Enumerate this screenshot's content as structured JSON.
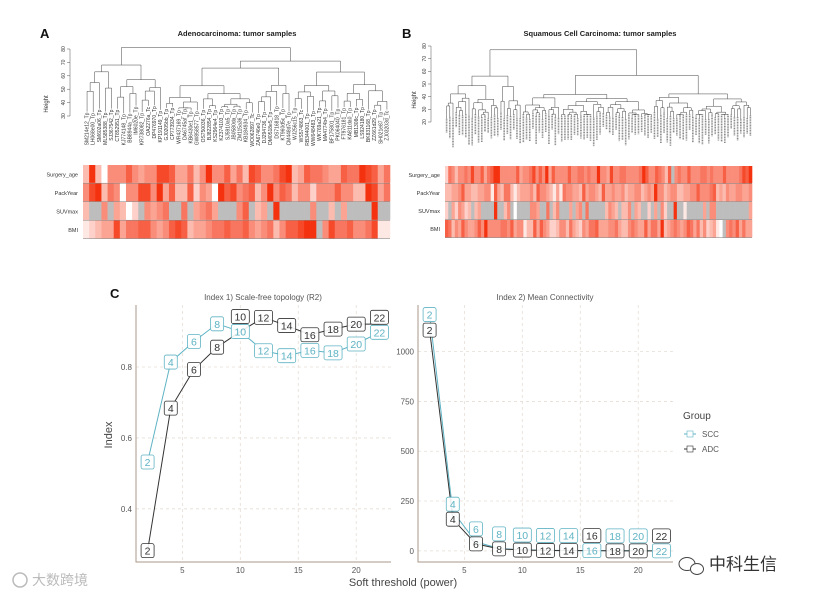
{
  "panel_a": {
    "label": "A",
    "title": "Adenocarcinoma: tumor samples",
    "y_axis_label": "Height",
    "y_ticks": [
      "30",
      "40",
      "50",
      "60",
      "70",
      "80"
    ],
    "leaf_labels": [
      "SM214e12_Tp",
      "LH068e00_Tp",
      "SM602a06_Tp",
      "ML585388_Tp",
      "SJ367542_Tp",
      "CT852951_Tp",
      "KJ774148_Tp",
      "BB8944a_Tp",
      "IM6020e_Tp",
      "KR738082_Tp",
      "OA2276a_Tc",
      "DP476970_Tp",
      "KP191149_Tp",
      "GJ0205bb_Tp",
      "CP773934_Tp",
      "WR437169_Tp",
      "DA6745af_Tp",
      "KB6430e1_Tp",
      "GW858577_Tp",
      "OS750036_Tp",
      "BJ822854_Tp",
      "KS2964e4_Tp",
      "KZ374103_Tp",
      "SJ5910a5_Tp",
      "JB0580da_Tp",
      "ZM115a36_Tp",
      "KB184934_Tp",
      "WO062897_Tc",
      "ZA6746e0_Tp",
      "DJ294736_Tp",
      "DM0518e5_Tp",
      "DS716818_Tp",
      "KT960d5c_Tp",
      "CM448d7e_Tp",
      "WJ256c15_Tp",
      "WS574863_Tc",
      "RB344001_Tp",
      "WW648483_Tp",
      "WK769a21_Tp",
      "MA4774b4_Tp",
      "BF175801_Tp",
      "PK064040_Tp",
      "FT976181_Tp",
      "KA811da0_Tp",
      "MB1308c_Tp",
      "LS924180_Tp",
      "BK831168_Tp",
      "ZZ661d29_Tp",
      "SH021e87_Tp",
      "ZJ03203d_Tc"
    ],
    "heatmap": {
      "rows": [
        "Surgery_age",
        "PackYear",
        "SUVmax",
        "BMI"
      ],
      "values": [
        "39305557545588744635955746387556893476654476698746",
        "58936505588594733725409785673595763552555755339846",
        "3--5-4302-5456--6-4564---57-34-9-----5--3-4----9--",
        "12344846677545787344566766754563577899-58667556811"
      ]
    }
  },
  "panel_b": {
    "label": "B",
    "title": "Squamous Cell Carcinoma: tumor samples",
    "y_axis_label": "Height",
    "y_ticks": [
      "20",
      "30",
      "40",
      "50",
      "60",
      "70",
      "80"
    ],
    "leaf_count": 96,
    "heatmap": {
      "rows": [
        "Surgery_age",
        "PackYear",
        "SUVmax",
        "BMI"
      ],
      "values": [
        "2653556585574679955555745568575947555575566565595548556655556975576537-565575556656555755556879",
        "3344574433445517436631344453755431416554437455437445445344553454955345533445575556734354455445",
        "2-425423-34----9--35-0----554--6-35---4-45-6-----3543-335-43--2-4-52--9--1-----4-55----------4",
        "7635475445759555566574551337475422355364325466744455643356544746649345654576463523410-56574644"
      ]
    }
  },
  "panel_c": {
    "label": "C",
    "legend_title": "Group"
  },
  "chart_data": [
    {
      "type": "line",
      "title": "Index 1) Scale-free topology (R2)",
      "xlabel": "Soft threshold (power)",
      "ylabel": "Index",
      "x": [
        2,
        4,
        6,
        8,
        10,
        12,
        14,
        16,
        18,
        20,
        22
      ],
      "x_ticks": [
        "5",
        "10",
        "15",
        "20"
      ],
      "y_ticks": [
        "0.4",
        "0.6",
        "0.8"
      ],
      "xlim": [
        1,
        23
      ],
      "ylim": [
        0.25,
        0.975
      ],
      "grid": true,
      "legend": "right",
      "series": [
        {
          "name": "SCC",
          "color": "#5fb3c4",
          "values": [
            0.532,
            0.814,
            0.872,
            0.922,
            0.9,
            0.846,
            0.832,
            0.847,
            0.84,
            0.865,
            0.898
          ]
        },
        {
          "name": "ADC",
          "color": "#333333",
          "values": [
            0.282,
            0.684,
            0.793,
            0.856,
            0.9,
            0.94,
            0.917,
            0.891,
            0.907,
            0.921,
            0.921
          ]
        }
      ]
    },
    {
      "type": "line",
      "title": "Index 2) Mean Connectivity",
      "xlabel": "Soft threshold (power)",
      "ylabel": "Index",
      "x": [
        2,
        4,
        6,
        8,
        10,
        12,
        14,
        16,
        18,
        20,
        22
      ],
      "x_ticks": [
        "5",
        "10",
        "15",
        "20"
      ],
      "y_ticks": [
        "0",
        "250",
        "500",
        "750",
        "1000"
      ],
      "xlim": [
        1,
        23
      ],
      "ylim": [
        -56,
        1234
      ],
      "grid": true,
      "legend": "right",
      "series": [
        {
          "name": "SCC",
          "color": "#5fb3c4",
          "values": [
            1186,
            198,
            45,
            12,
            5,
            3,
            2,
            1,
            1,
            1,
            0
          ]
        },
        {
          "name": "ADC",
          "color": "#333333",
          "values": [
            1108,
            159,
            35,
            10,
            4,
            2,
            1,
            1,
            0,
            0,
            0
          ]
        }
      ]
    }
  ],
  "watermarks": {
    "left": "大数跨境",
    "right": "中科生信"
  }
}
